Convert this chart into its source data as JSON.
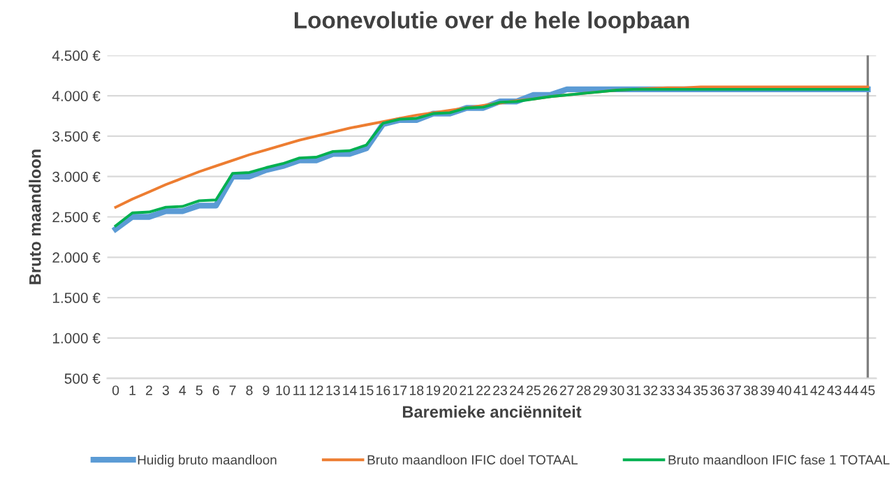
{
  "chart_data": {
    "type": "line",
    "title": "Loonevolutie over de hele loopbaan",
    "xlabel": "Baremieke anciënniteit",
    "ylabel": "Bruto maandloon",
    "categories": [
      "0",
      "1",
      "2",
      "3",
      "4",
      "5",
      "6",
      "7",
      "8",
      "9",
      "10",
      "11",
      "12",
      "13",
      "14",
      "15",
      "16",
      "17",
      "18",
      "19",
      "20",
      "21",
      "22",
      "23",
      "24",
      "25",
      "26",
      "27",
      "28",
      "29",
      "30",
      "31",
      "32",
      "33",
      "34",
      "35",
      "36",
      "37",
      "38",
      "39",
      "40",
      "41",
      "42",
      "43",
      "44",
      "45"
    ],
    "series": [
      {
        "name": "Huidig bruto maandloon",
        "color": "#5b9bd5",
        "values": [
          2350,
          2500,
          2500,
          2570,
          2570,
          2640,
          2640,
          3000,
          3000,
          3080,
          3130,
          3200,
          3200,
          3280,
          3280,
          3350,
          3650,
          3700,
          3700,
          3780,
          3780,
          3850,
          3850,
          3930,
          3930,
          4010,
          4010,
          4080,
          4080,
          4080,
          4080,
          4080,
          4080,
          4080,
          4080,
          4080,
          4080,
          4080,
          4080,
          4080,
          4080,
          4080,
          4080,
          4080,
          4080,
          4080
        ]
      },
      {
        "name": "Bruto maandloon IFIC doel TOTAAL",
        "color": "#ed7d31",
        "values": [
          2620,
          2720,
          2810,
          2900,
          2980,
          3060,
          3130,
          3200,
          3270,
          3330,
          3390,
          3450,
          3500,
          3550,
          3600,
          3640,
          3680,
          3720,
          3760,
          3790,
          3820,
          3850,
          3880,
          3910,
          3940,
          3960,
          3990,
          4010,
          4030,
          4050,
          4070,
          4080,
          4090,
          4100,
          4100,
          4110,
          4110,
          4110,
          4110,
          4110,
          4110,
          4110,
          4110,
          4110,
          4110,
          4110
        ]
      },
      {
        "name": "Bruto maandloon IFIC fase 1 TOTAAL",
        "color": "#00b050",
        "values": [
          2390,
          2550,
          2560,
          2620,
          2630,
          2700,
          2710,
          3040,
          3050,
          3110,
          3160,
          3230,
          3240,
          3310,
          3320,
          3390,
          3660,
          3710,
          3720,
          3780,
          3790,
          3850,
          3860,
          3920,
          3930,
          3960,
          3990,
          4010,
          4030,
          4050,
          4070,
          4080,
          4080,
          4080,
          4080,
          4080,
          4080,
          4080,
          4080,
          4080,
          4080,
          4080,
          4080,
          4080,
          4080,
          4080
        ]
      }
    ],
    "ylim": [
      500,
      4500
    ],
    "yticks": [
      {
        "value": 500,
        "label": "500 €"
      },
      {
        "value": 1000,
        "label": "1.000 €"
      },
      {
        "value": 1500,
        "label": "1.500 €"
      },
      {
        "value": 2000,
        "label": "2.000 €"
      },
      {
        "value": 2500,
        "label": "2.500 €"
      },
      {
        "value": 3000,
        "label": "3.000 €"
      },
      {
        "value": 3500,
        "label": "3.500 €"
      },
      {
        "value": 4000,
        "label": "4.000 €"
      },
      {
        "value": 4500,
        "label": "4.500 €"
      }
    ],
    "ref_lines": [
      {
        "axis": "x",
        "value": "45",
        "color": "#7f7f7f"
      }
    ],
    "grid": "y",
    "legend": "bottom",
    "marker": "none",
    "line_style": "solid"
  }
}
